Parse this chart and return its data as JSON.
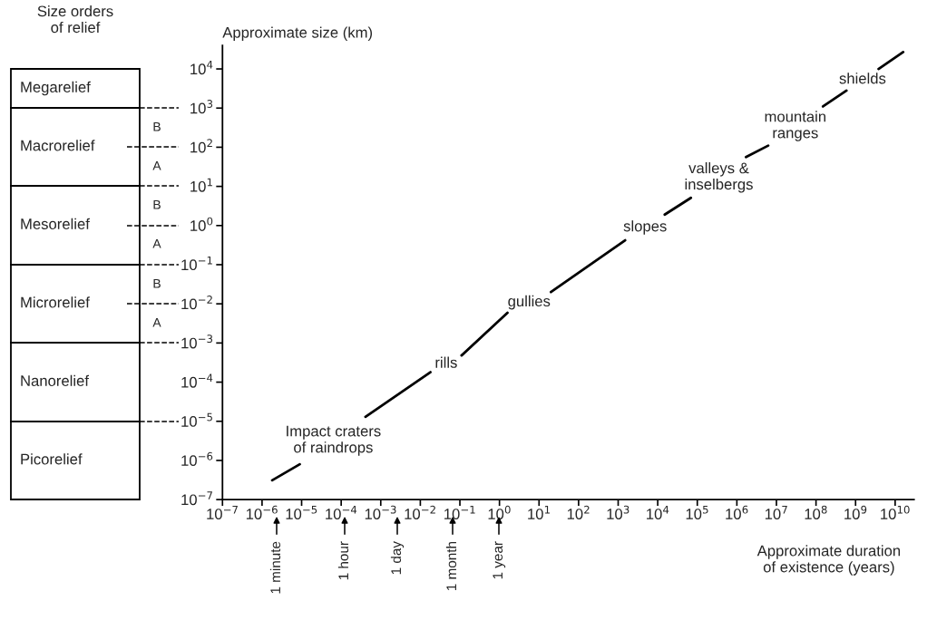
{
  "chart_data": [
    {
      "type": "other",
      "annotations": [
        "Size orders\nof relief",
        "Megarelief",
        "Macrorelief",
        "Mesorelief",
        "Microrelief",
        "Nanorelief",
        "Picorelief",
        "B",
        "A",
        "B",
        "A",
        "B",
        "A",
        "1 minute",
        "1 hour",
        "1 day",
        "1 month",
        "1 year"
      ]
    },
    {
      "type": "line",
      "ylabel": "Approximate size (km)",
      "xlabel": "Approximate duration\nof existence (years)",
      "log": "xy",
      "grid": false,
      "x": [
        1.8e-06,
        9e-06,
        6.3e-05,
        0.00041,
        0.018,
        0.045,
        0.11,
        1.6,
        5.6,
        20,
        1500,
        4800,
        15000.0,
        69000.0,
        350000.0,
        1700000.0,
        6200000.0,
        30000000.0,
        150000000.0,
        590000000.0,
        1500000000.0,
        3800000000.0,
        16000000000.0
      ],
      "series": [
        {
          "color": "#000000",
          "values": [
            3.1e-07,
            8e-07,
            null,
            1.3e-05,
            0.00018,
            null,
            0.00048,
            0.0059,
            null,
            0.02,
            0.42,
            null,
            1.9,
            5.1,
            null,
            56,
            110,
            null,
            1100,
            2800,
            null,
            10000.0,
            27000.0
          ]
        }
      ],
      "xlim": [
        1e-07,
        30000000000.0
      ],
      "ylim": [
        1e-07,
        40000.0
      ],
      "xticks": [
        {
          "value": 1e-07,
          "label": "10$^{−7}$"
        },
        {
          "value": 1e-06,
          "label": "10$^{−6}$"
        },
        {
          "value": 1e-05,
          "label": "10$^{−5}$"
        },
        {
          "value": 0.0001,
          "label": "10$^{−4}$"
        },
        {
          "value": 0.001,
          "label": "10$^{−3}$"
        },
        {
          "value": 0.01,
          "label": "10$^{−2}$"
        },
        {
          "value": 0.1,
          "label": "10$^{−1}$"
        },
        {
          "value": 1,
          "label": "10$^{0}$"
        },
        {
          "value": 10,
          "label": "10$^{1}$"
        },
        {
          "value": 100,
          "label": "10$^{2}$"
        },
        {
          "value": 1000.0,
          "label": "10$^{3}$"
        },
        {
          "value": 10000.0,
          "label": "10$^{4}$"
        },
        {
          "value": 100000.0,
          "label": "10$^{5}$"
        },
        {
          "value": 1000000.0,
          "label": "10$^{6}$"
        },
        {
          "value": 10000000.0,
          "label": "10$^{7}$"
        },
        {
          "value": 100000000.0,
          "label": "10$^{8}$"
        },
        {
          "value": 1000000000.0,
          "label": "10$^{9}$"
        },
        {
          "value": 10000000000.0,
          "label": "10$^{10}$"
        }
      ],
      "yticks": [
        {
          "value": 1e-07,
          "label": "10$^{−7}$"
        },
        {
          "value": 1e-06,
          "label": "10$^{−6}$"
        },
        {
          "value": 1e-05,
          "label": "10$^{−5}$"
        },
        {
          "value": 0.0001,
          "label": "10$^{−4}$"
        },
        {
          "value": 0.001,
          "label": "10$^{−3}$"
        },
        {
          "value": 0.01,
          "label": "10$^{−2}$"
        },
        {
          "value": 0.1,
          "label": "10$^{−1}$"
        },
        {
          "value": 1,
          "label": "10$^{0}$"
        },
        {
          "value": 10,
          "label": "10$^{1}$"
        },
        {
          "value": 100,
          "label": "10$^{2}$"
        },
        {
          "value": 1000.0,
          "label": "10$^{3}$"
        },
        {
          "value": 10000.0,
          "label": "10$^{4}$"
        }
      ],
      "annotations": [
        "Impact craters\nof raindrops",
        "rills",
        "gullies",
        "slopes",
        "valleys &\ninselbergs",
        "mountain\nranges",
        "shields"
      ]
    }
  ]
}
